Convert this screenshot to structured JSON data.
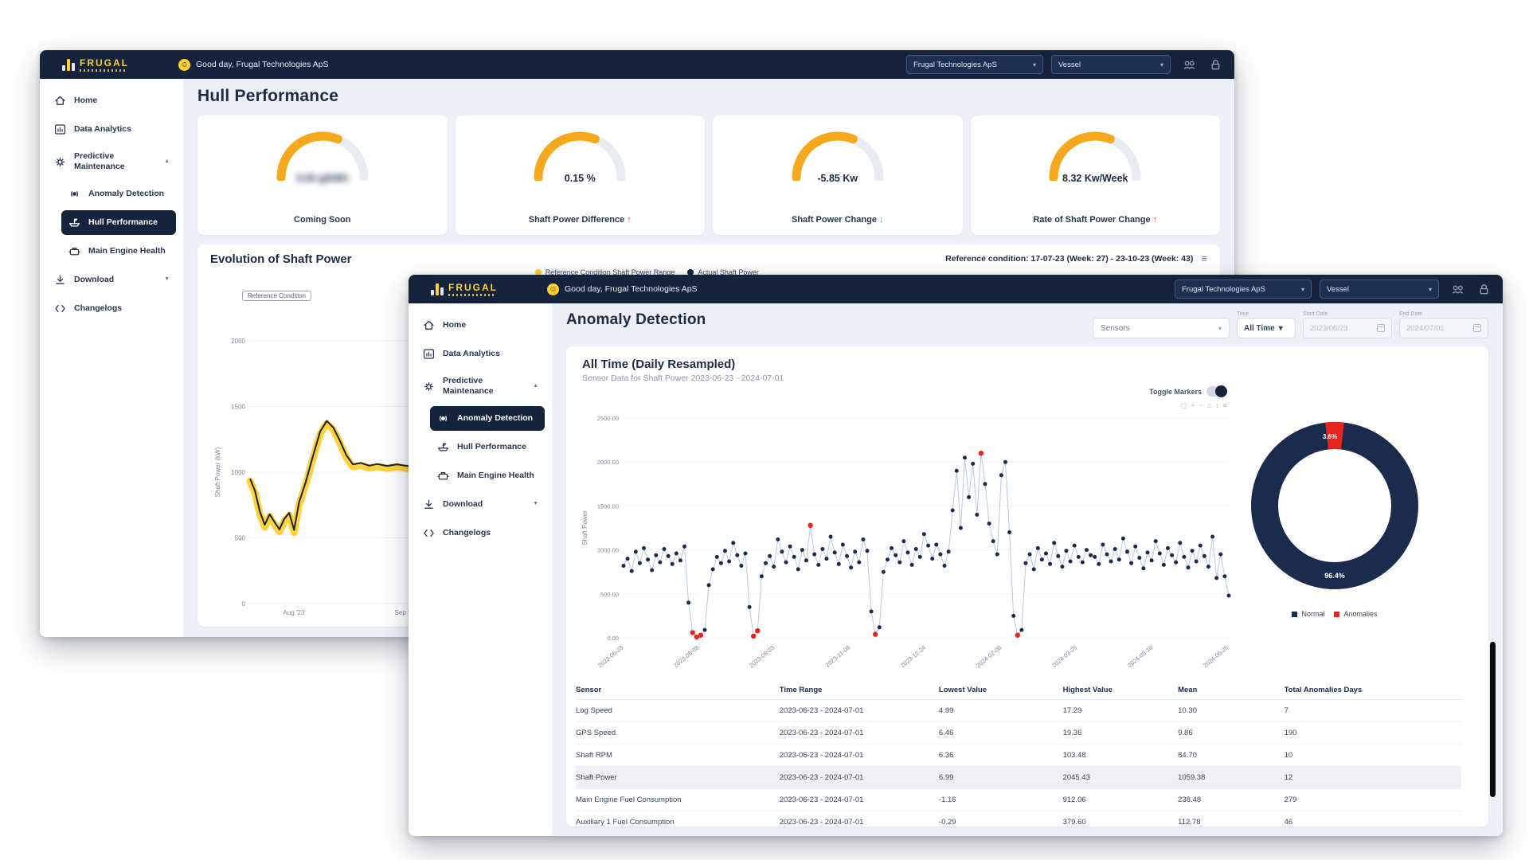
{
  "header": {
    "logo_text": "FRUGAL",
    "greeting": "Good day, Frugal Technologies ApS",
    "company_select": "Frugal Technologies ApS",
    "vessel_select": "Vessel"
  },
  "sidebar": {
    "items": [
      {
        "label": "Home",
        "icon": "home-icon"
      },
      {
        "label": "Data Analytics",
        "icon": "analytics-icon"
      },
      {
        "label": "Predictive Maintenance",
        "icon": "maintenance-icon",
        "chevron": "up"
      },
      {
        "label": "Anomaly Detection",
        "icon": "anomaly-icon",
        "child": true
      },
      {
        "label": "Hull Performance",
        "icon": "hull-icon",
        "child": true
      },
      {
        "label": "Main Engine Health",
        "icon": "engine-icon",
        "child": true
      },
      {
        "label": "Download",
        "icon": "download-icon",
        "chevron": "down"
      },
      {
        "label": "Changelogs",
        "icon": "changelog-icon"
      }
    ]
  },
  "back_window": {
    "page_title": "Hull Performance",
    "active_item": "Hull Performance",
    "evolution": {
      "title": "Evolution of Shaft Power",
      "reference_condition": "Reference condition: 17-07-23 (Week: 27) - 23-10-23 (Week: 43)",
      "chip": "Reference Condition"
    }
  },
  "front_window": {
    "page_title": "Anomaly Detection",
    "active_item": "Anomaly Detection",
    "filters": {
      "sensors_value": "Sensors",
      "time_label": "Time",
      "time_value": "All Time",
      "start_label": "Start Date",
      "start_value": "2023/06/23",
      "end_label": "End Date",
      "end_value": "2024/07/01"
    },
    "card": {
      "heading": "All Time (Daily Resampled)",
      "subtitle": "Sensor Data for Shaft Power 2023-06-23 - 2024-07-01",
      "toggle_label": "Toggle Markers",
      "modebar_icons": [
        "camera-icon",
        "zoom-in-icon",
        "zoom-out-icon",
        "home-icon",
        "pan-icon",
        "menu-icon"
      ]
    },
    "table": {
      "columns": [
        "Sensor",
        "Time Range",
        "Lowest Value",
        "Highest Value",
        "Mean",
        "Total Anomalies Days"
      ],
      "highlight_row": 3,
      "rows": [
        [
          "Log Speed",
          "2023-06-23 - 2024-07-01",
          "4.99",
          "17.29",
          "10.30",
          "7"
        ],
        [
          "GPS Speed",
          "2023-06-23 - 2024-07-01",
          "6.46",
          "19.36",
          "9.86",
          "190"
        ],
        [
          "Shaft RPM",
          "2023-06-23 - 2024-07-01",
          "6.36",
          "103.48",
          "84.70",
          "10"
        ],
        [
          "Shaft Power",
          "2023-06-23 - 2024-07-01",
          "6.99",
          "2045.43",
          "1059.38",
          "12"
        ],
        [
          "Main Engine Fuel Consumption",
          "2023-06-23 - 2024-07-01",
          "-1.16",
          "912.06",
          "238.48",
          "279"
        ],
        [
          "Auxiliary 1 Fuel Consumption",
          "2023-06-23 - 2024-07-01",
          "-0.29",
          "379.60",
          "112.78",
          "46"
        ]
      ]
    }
  },
  "chart_data": [
    {
      "type": "gauge",
      "title": "Coming Soon",
      "value": "0.00 g/kWh",
      "value_blurred": true,
      "percent": 62,
      "color": "#f5a81c"
    },
    {
      "type": "gauge",
      "title": "Shaft Power Difference",
      "value": "0.15 %",
      "trend": "up",
      "trend_color": "#e23a2e",
      "percent": 62,
      "color": "#f5a81c"
    },
    {
      "type": "gauge",
      "title": "Shaft Power Change",
      "value": "-5.85 Kw",
      "trend": "down",
      "trend_color": "#3fae49",
      "percent": 62,
      "color": "#f5a81c"
    },
    {
      "type": "gauge",
      "title": "Rate of Shaft Power Change",
      "value": "8.32 Kw/Week",
      "trend": "up",
      "trend_color": "#e23a2e",
      "percent": 62,
      "color": "#f5a81c"
    },
    {
      "type": "line",
      "title": "Evolution of Shaft Power",
      "ylabel": "Shaft Power (kW)",
      "xlabel": "",
      "x_ticks": [
        "Aug '23",
        "Sep '23"
      ],
      "y_ticks": [
        0,
        500,
        1000,
        1500,
        2000
      ],
      "ylim": [
        0,
        2200
      ],
      "series": [
        {
          "name": "Reference Condition Shaft Power Range",
          "color": "#ffd02f"
        },
        {
          "name": "Actual Shaft Power",
          "color": "#16233d"
        }
      ],
      "points": [
        [
          0,
          950
        ],
        [
          3,
          860
        ],
        [
          6,
          700
        ],
        [
          9,
          600
        ],
        [
          12,
          680
        ],
        [
          15,
          620
        ],
        [
          18,
          565
        ],
        [
          21,
          645
        ],
        [
          24,
          690
        ],
        [
          27,
          560
        ],
        [
          30,
          770
        ],
        [
          34,
          920
        ],
        [
          38,
          1100
        ],
        [
          43,
          1310
        ],
        [
          47,
          1390
        ],
        [
          51,
          1340
        ],
        [
          55,
          1240
        ],
        [
          59,
          1130
        ],
        [
          63,
          1060
        ],
        [
          68,
          1070
        ],
        [
          73,
          1050
        ],
        [
          78,
          1062
        ],
        [
          84,
          1048
        ],
        [
          90,
          1060
        ],
        [
          95,
          1050
        ],
        [
          100,
          1042
        ]
      ]
    },
    {
      "type": "scatter",
      "title": "Sensor Data for Shaft Power 2023-06-23 - 2024-07-01",
      "ylabel": "Shaft Power",
      "y_ticks": [
        "2500.00",
        "2000.00",
        "1500.00",
        "1000.00",
        "500.00",
        "0.00"
      ],
      "ylim": [
        0,
        2500
      ],
      "x_ticks": [
        "2023-06-23",
        "2023-08-08",
        "2023-09-23",
        "2023-11-08",
        "2023-12-24",
        "2024-02-08",
        "2024-03-25",
        "2024-05-10",
        "2024-06-25"
      ],
      "point_color": "#1b2b4d",
      "anomaly_color": "#e8251d",
      "line_color": "#b9c9dd",
      "anomaly_indices": [
        17,
        18,
        19,
        32,
        33,
        46,
        62,
        88,
        97
      ],
      "values": [
        820,
        900,
        760,
        980,
        850,
        1020,
        890,
        770,
        940,
        860,
        1010,
        930,
        840,
        960,
        880,
        1040,
        400,
        60,
        10,
        30,
        90,
        600,
        780,
        920,
        850,
        990,
        870,
        1080,
        940,
        820,
        960,
        350,
        20,
        80,
        700,
        850,
        930,
        810,
        1120,
        980,
        860,
        1040,
        920,
        780,
        1000,
        880,
        1280,
        950,
        830,
        1010,
        900,
        1150,
        970,
        840,
        1060,
        930,
        800,
        980,
        860,
        1120,
        990,
        300,
        40,
        120,
        750,
        890,
        1020,
        940,
        860,
        1100,
        970,
        830,
        1010,
        920,
        1180,
        1050,
        900,
        1060,
        950,
        820,
        980,
        1450,
        1900,
        1250,
        2050,
        1600,
        1980,
        1400,
        2100,
        1750,
        1300,
        1100,
        950,
        1850,
        2000,
        1200,
        250,
        30,
        90,
        850,
        950,
        780,
        1020,
        890,
        960,
        840,
        1080,
        930,
        810,
        990,
        870,
        1050,
        920,
        860,
        1000,
        940,
        920,
        840,
        1060,
        950,
        870,
        1010,
        890,
        1130,
        980,
        850,
        1040,
        910,
        790,
        970,
        880,
        1100,
        960,
        830,
        1020,
        940,
        860,
        1080,
        920,
        800,
        990,
        870,
        1050,
        930,
        810,
        1150,
        680,
        950,
        700,
        480
      ]
    },
    {
      "type": "pie",
      "donut": true,
      "slices": [
        {
          "label": "Normal",
          "value": 96.4,
          "display": "96.4%",
          "color": "#1b2b4d"
        },
        {
          "label": "Anomalies",
          "value": 3.6,
          "display": "3.6%",
          "color": "#e8251d"
        }
      ],
      "legend_position": "bottom"
    }
  ]
}
